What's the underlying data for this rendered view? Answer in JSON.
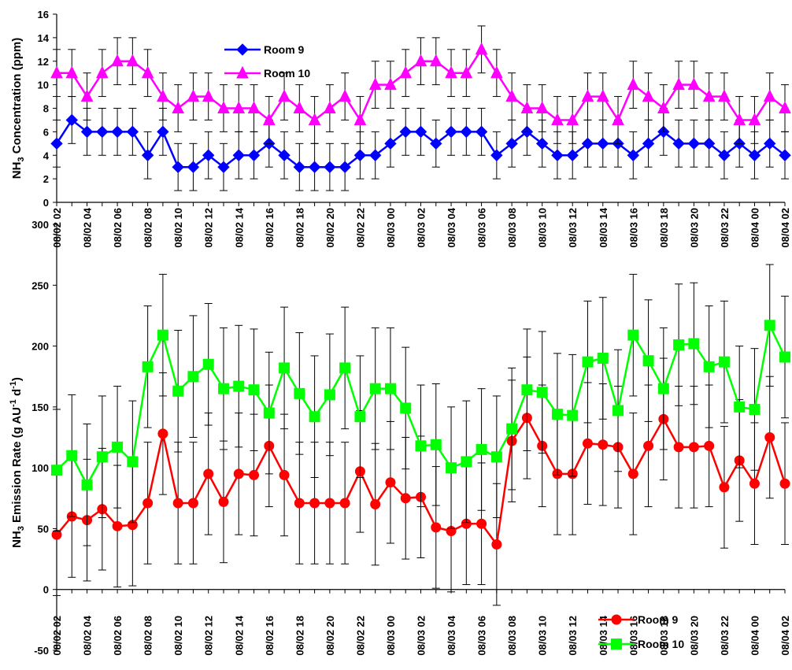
{
  "chart_data": [
    {
      "type": "line",
      "ylabel_main": "NH",
      "ylabel_sub": "3",
      "ylabel_rest": " Concentration (ppm)",
      "ylim": [
        0,
        16
      ],
      "yticks": [
        0,
        2,
        4,
        6,
        8,
        10,
        12,
        14,
        16
      ],
      "x": [
        "08/02 02",
        "08/02 03",
        "08/02 04",
        "08/02 05",
        "08/02 06",
        "08/02 07",
        "08/02 08",
        "08/02 09",
        "08/02 10",
        "08/02 11",
        "08/02 12",
        "08/02 13",
        "08/02 14",
        "08/02 15",
        "08/02 16",
        "08/02 17",
        "08/02 18",
        "08/02 19",
        "08/02 20",
        "08/02 21",
        "08/02 22",
        "08/02 23",
        "08/03 00",
        "08/03 01",
        "08/03 02",
        "08/03 03",
        "08/03 04",
        "08/03 05",
        "08/03 06",
        "08/03 07",
        "08/03 08",
        "08/03 09",
        "08/03 10",
        "08/03 11",
        "08/03 12",
        "08/03 13",
        "08/03 14",
        "08/03 15",
        "08/03 16",
        "08/03 17",
        "08/03 18",
        "08/03 19",
        "08/03 20",
        "08/03 21",
        "08/03 22",
        "08/03 23",
        "08/04 00",
        "08/04 01",
        "08/04 02"
      ],
      "xtick_labels": [
        "08/02 02",
        "08/02 04",
        "08/02 06",
        "08/02 08",
        "08/02 10",
        "08/02 12",
        "08/02 14",
        "08/02 16",
        "08/02 18",
        "08/02 20",
        "08/02 22",
        "08/03 00",
        "08/03 02",
        "08/03 04",
        "08/03 06",
        "08/03 08",
        "08/03 10",
        "08/03 12",
        "08/03 14",
        "08/03 16",
        "08/03 18",
        "08/03 20",
        "08/03 22",
        "08/04 00",
        "08/04 02"
      ],
      "legend_position": "top-left",
      "series": [
        {
          "name": "Room 9",
          "color": "#0000ff",
          "marker": "diamond",
          "values": [
            5,
            7,
            6,
            6,
            6,
            6,
            4,
            6,
            3,
            3,
            4,
            3,
            4,
            4,
            5,
            4,
            3,
            3,
            3,
            3,
            4,
            4,
            5,
            6,
            6,
            5,
            6,
            6,
            6,
            4,
            5,
            6,
            5,
            4,
            4,
            5,
            5,
            5,
            4,
            5,
            6,
            5,
            5,
            5,
            4,
            5,
            4,
            5,
            4
          ],
          "error": 2
        },
        {
          "name": "Room 10",
          "color": "#ff00ff",
          "marker": "triangle",
          "values": [
            11,
            11,
            9,
            11,
            12,
            12,
            11,
            9,
            8,
            9,
            9,
            8,
            8,
            8,
            7,
            9,
            8,
            7,
            8,
            9,
            7,
            10,
            10,
            11,
            12,
            12,
            11,
            11,
            13,
            11,
            9,
            8,
            8,
            7,
            7,
            9,
            9,
            7,
            10,
            9,
            8,
            10,
            10,
            9,
            9,
            7,
            7,
            9,
            8
          ],
          "error": 2
        }
      ]
    },
    {
      "type": "line",
      "ylabel_main": "NH",
      "ylabel_sub": "3",
      "ylabel_rest": " Emission Rate (g AU",
      "ylabel_sup1": "-1",
      "ylabel_rest2": " d",
      "ylabel_sup2": "-1",
      "ylabel_end": ")",
      "ylim": [
        -50,
        300
      ],
      "yticks": [
        -50,
        0,
        50,
        100,
        150,
        200,
        250,
        300
      ],
      "x": [
        "08/02 02",
        "08/02 03",
        "08/02 04",
        "08/02 05",
        "08/02 06",
        "08/02 07",
        "08/02 08",
        "08/02 09",
        "08/02 10",
        "08/02 11",
        "08/02 12",
        "08/02 13",
        "08/02 14",
        "08/02 15",
        "08/02 16",
        "08/02 17",
        "08/02 18",
        "08/02 19",
        "08/02 20",
        "08/02 21",
        "08/02 22",
        "08/02 23",
        "08/03 00",
        "08/03 01",
        "08/03 02",
        "08/03 03",
        "08/03 04",
        "08/03 05",
        "08/03 06",
        "08/03 07",
        "08/03 08",
        "08/03 09",
        "08/03 10",
        "08/03 11",
        "08/03 12",
        "08/03 13",
        "08/03 14",
        "08/03 15",
        "08/03 16",
        "08/03 17",
        "08/03 18",
        "08/03 19",
        "08/03 20",
        "08/03 21",
        "08/03 22",
        "08/03 23",
        "08/04 00",
        "08/04 01",
        "08/04 02"
      ],
      "xtick_labels": [
        "08/02 02",
        "08/02 04",
        "08/02 06",
        "08/02 08",
        "08/02 10",
        "08/02 12",
        "08/02 14",
        "08/02 16",
        "08/02 18",
        "08/02 20",
        "08/02 22",
        "08/03 00",
        "08/03 02",
        "08/03 04",
        "08/03 06",
        "08/03 08",
        "08/03 10",
        "08/03 12",
        "08/03 14",
        "08/03 16",
        "08/03 18",
        "08/03 20",
        "08/03 22",
        "08/04 00",
        "08/04 02"
      ],
      "legend_position": "bottom-right",
      "series": [
        {
          "name": "Room 9",
          "color": "#ff0000",
          "marker": "circle",
          "values": [
            45,
            60,
            57,
            66,
            52,
            53,
            71,
            128,
            71,
            71,
            95,
            72,
            95,
            94,
            118,
            94,
            71,
            71,
            71,
            71,
            97,
            70,
            88,
            75,
            76,
            51,
            48,
            54,
            54,
            37,
            122,
            141,
            118,
            95,
            95,
            120,
            119,
            117,
            95,
            118,
            140,
            117,
            117,
            118,
            84,
            106,
            87,
            125,
            87
          ],
          "error": 50
        },
        {
          "name": "Room 10",
          "color": "#00ff00",
          "marker": "square",
          "values": [
            98,
            110,
            86,
            109,
            117,
            105,
            183,
            209,
            163,
            175,
            185,
            165,
            167,
            164,
            145,
            182,
            161,
            142,
            160,
            182,
            142,
            165,
            165,
            149,
            118,
            119,
            100,
            105,
            115,
            109,
            132,
            164,
            162,
            144,
            143,
            187,
            190,
            147,
            209,
            188,
            165,
            201,
            202,
            183,
            187,
            150,
            148,
            217,
            191
          ],
          "error": 50
        }
      ]
    }
  ]
}
